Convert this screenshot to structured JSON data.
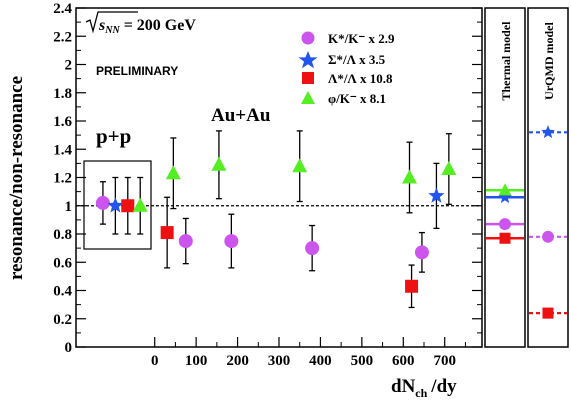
{
  "chart_data": {
    "type": "scatter",
    "energy_label_prefix": "√",
    "energy_label_symbol": "s",
    "energy_label_sub": "NN",
    "energy_label_value": "= 200 GeV",
    "preliminary_label": "PRELIMINARY",
    "ylabel": "resonance/non-resonance",
    "xlabel_main": "dN",
    "xlabel_sub": "ch",
    "xlabel_tail": "/dy",
    "ylim": [
      0,
      2.4
    ],
    "xlim": [
      -190,
      790
    ],
    "y_ticks": [
      "0",
      "0.2",
      "0.4",
      "0.6",
      "0.8",
      "1",
      "1.2",
      "1.4",
      "1.6",
      "1.8",
      "2",
      "2.2",
      "2.4"
    ],
    "x_ticks": [
      "0",
      "100",
      "200",
      "300",
      "400",
      "500",
      "600",
      "700"
    ],
    "reference_line": 1.0,
    "label_pp": "p+p",
    "label_auau": "Au+Au",
    "panel_thermal_title": "Thermal model",
    "panel_urqmd_title": "UrQMD model",
    "series": [
      {
        "name": "K*/K⁻ x 2.9",
        "marker": "circle",
        "color": "#cc55ee",
        "points": [
          {
            "x": -125,
            "y": 1.02,
            "err": 0.15
          },
          {
            "x": 75,
            "y": 0.75,
            "err": 0.16
          },
          {
            "x": 185,
            "y": 0.75,
            "err": 0.19
          },
          {
            "x": 380,
            "y": 0.7,
            "err": 0.16
          },
          {
            "x": 645,
            "y": 0.67,
            "err": 0.14
          }
        ],
        "thermal": 0.87,
        "urqmd": 0.78
      },
      {
        "name": "Σ*/Λ x 3.5",
        "marker": "star",
        "color": "#2255ee",
        "points": [
          {
            "x": -95,
            "y": 1.0,
            "err": 0.2
          },
          {
            "x": 680,
            "y": 1.07,
            "err": 0.23
          }
        ],
        "thermal": 1.06,
        "urqmd": 1.52
      },
      {
        "name": "Λ*/Λ x 10.8",
        "marker": "square",
        "color": "#ee1111",
        "points": [
          {
            "x": -65,
            "y": 1.0,
            "err": 0.2
          },
          {
            "x": 30,
            "y": 0.81,
            "err": 0.25
          },
          {
            "x": 620,
            "y": 0.43,
            "err": 0.15
          }
        ],
        "thermal": 0.77,
        "urqmd": 0.24
      },
      {
        "name": "φ/K⁻ x 8.1",
        "marker": "triangle",
        "color": "#55ee22",
        "points": [
          {
            "x": -35,
            "y": 1.0,
            "err": 0.2
          },
          {
            "x": 45,
            "y": 1.23,
            "err": 0.25
          },
          {
            "x": 155,
            "y": 1.29,
            "err": 0.24
          },
          {
            "x": 350,
            "y": 1.28,
            "err": 0.25
          },
          {
            "x": 615,
            "y": 1.2,
            "err": 0.25
          },
          {
            "x": 710,
            "y": 1.26,
            "err": 0.25
          }
        ],
        "thermal": 1.11,
        "urqmd": null
      }
    ]
  }
}
